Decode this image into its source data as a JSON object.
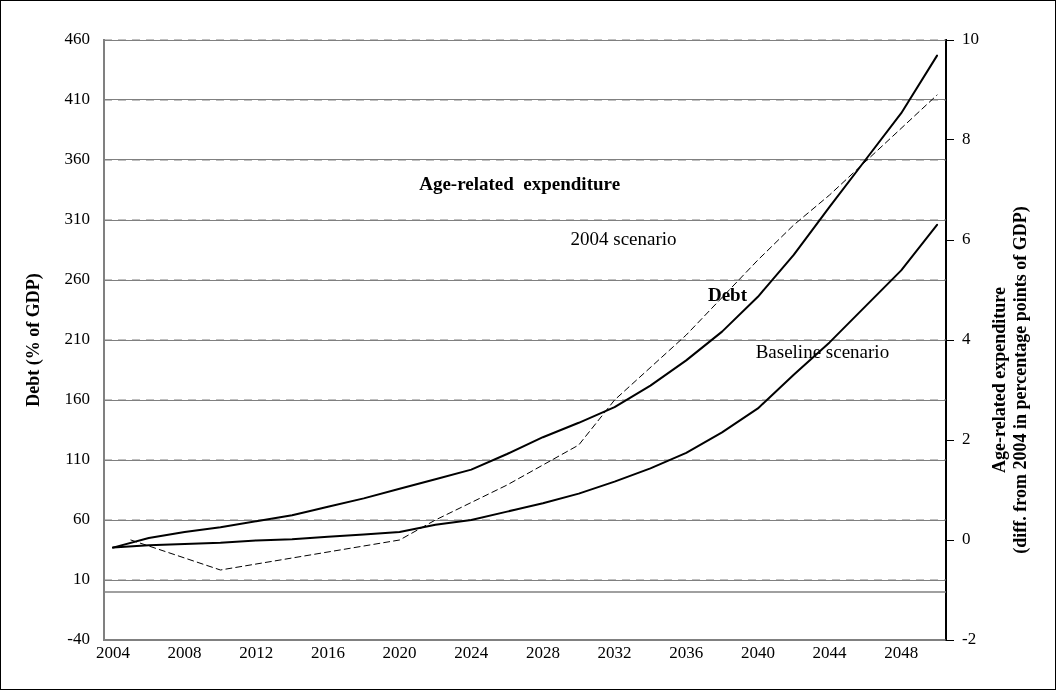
{
  "chart_data": {
    "type": "line",
    "xlabel": null,
    "ylabel": "Debt (% of GDP)",
    "y2label": "Age-related expenditure\n(diff. from 2004 in percentage points of GDP)",
    "xlim": [
      2003.5,
      2050.5
    ],
    "xticks": [
      2004,
      2008,
      2012,
      2016,
      2020,
      2024,
      2028,
      2032,
      2036,
      2040,
      2044,
      2048
    ],
    "ylim": [
      -40,
      460
    ],
    "yticks": [
      -40,
      10,
      60,
      110,
      160,
      210,
      260,
      310,
      360,
      410,
      460
    ],
    "y2lim": [
      -2,
      10
    ],
    "y2ticks": [
      -2,
      0,
      2,
      4,
      6,
      8,
      10
    ],
    "grid": "y",
    "legend": false,
    "marker": "none",
    "ref_lines": [
      {
        "axis": "y",
        "value": 0,
        "color": "#808080",
        "line_style": "solid"
      }
    ],
    "series": [
      {
        "color": "#000000",
        "line_style": "solid",
        "x": [
          2004,
          2006,
          2008,
          2010,
          2012,
          2014,
          2016,
          2018,
          2020,
          2022,
          2024,
          2026,
          2028,
          2030,
          2032,
          2034,
          2036,
          2038,
          2040,
          2042,
          2044,
          2046,
          2048,
          2050
        ],
        "values": [
          37,
          45,
          50,
          54,
          59,
          64,
          71,
          78,
          86,
          94,
          102,
          115,
          129,
          141,
          154,
          172,
          193,
          217,
          246,
          281,
          321,
          360,
          399,
          447
        ]
      },
      {
        "color": "#000000",
        "line_style": "solid",
        "x": [
          2004,
          2006,
          2008,
          2010,
          2012,
          2014,
          2016,
          2018,
          2020,
          2022,
          2024,
          2026,
          2028,
          2030,
          2032,
          2034,
          2036,
          2038,
          2040,
          2042,
          2044,
          2046,
          2048,
          2050
        ],
        "values": [
          37,
          39,
          40,
          41,
          43,
          44,
          46,
          48,
          50,
          56,
          60,
          67,
          74,
          82,
          92,
          103,
          116,
          133,
          153,
          181,
          208,
          238,
          268,
          306
        ]
      },
      {
        "color": "#000000",
        "line_style": "dashed",
        "axis": "y2",
        "x": [
          2005,
          2010,
          2020,
          2022,
          2026,
          2030,
          2032,
          2036,
          2040,
          2042,
          2044,
          2047,
          2050
        ],
        "values": [
          0,
          -0.6,
          0,
          0.4,
          1.1,
          1.9,
          2.8,
          4.1,
          5.6,
          6.3,
          6.9,
          7.9,
          8.9
        ]
      }
    ],
    "annotations": [
      "Age-related  expenditure",
      "2004 scenario",
      "Debt",
      "Baseline scenario"
    ]
  }
}
